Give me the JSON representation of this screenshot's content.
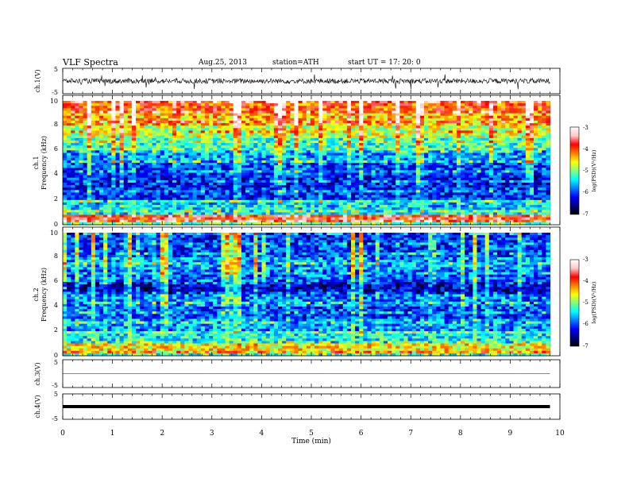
{
  "header": {
    "title": "VLF  Spectra",
    "date": "Aug.25, 2013",
    "station": "station=ATH",
    "start": "start  UT  =    17: 20: 0"
  },
  "colors": {
    "colormap": [
      "#000000",
      "#00007f",
      "#0000ff",
      "#007fff",
      "#00ffff",
      "#7fff7f",
      "#ffff00",
      "#ff7f00",
      "#ff0000",
      "#ffc8c8",
      "#ffffff"
    ],
    "trace": "#000000"
  },
  "chart_data": [
    {
      "type": "line",
      "panel": "ch1-waveform",
      "ylabel": "ch.1(V)",
      "ylim": [
        -5,
        5
      ],
      "yticks": [
        "5",
        "-5"
      ],
      "xlim": [
        0,
        10
      ],
      "description_values": {
        "baseline_v": 0.0,
        "noise_amplitude_v": 2.0,
        "spike_amplitude_v": 5.0
      }
    },
    {
      "type": "heatmap",
      "panel": "ch1-spectrogram",
      "ylabel_top": "ch.1",
      "ylabel": "Frequency  (kHz)",
      "ylim": [
        0,
        10
      ],
      "yticks": [
        "0",
        "2",
        "4",
        "6",
        "8",
        "10"
      ],
      "xlim": [
        0,
        9.8
      ],
      "colorbar": {
        "label": "log(PSD)(V²/Hz)",
        "range": [
          -7,
          -3
        ],
        "ticks": [
          "-3",
          "-4",
          "-5",
          "-6",
          "-7"
        ]
      },
      "bands": [
        {
          "f": [
            0,
            0.3
          ],
          "level": -5.0
        },
        {
          "f": [
            0.3,
            0.7
          ],
          "level": -3.8
        },
        {
          "f": [
            0.7,
            1.3
          ],
          "level": -5.4
        },
        {
          "f": [
            1.3,
            2.0
          ],
          "level": -5.5
        },
        {
          "f": [
            2.0,
            3.0
          ],
          "level": -6.1
        },
        {
          "f": [
            3.0,
            4.0
          ],
          "level": -6.2
        },
        {
          "f": [
            4.0,
            5.0
          ],
          "level": -6.0
        },
        {
          "f": [
            5.0,
            6.0
          ],
          "level": -5.7
        },
        {
          "f": [
            6.0,
            7.0
          ],
          "level": -5.2
        },
        {
          "f": [
            7.0,
            8.0
          ],
          "level": -4.8
        },
        {
          "f": [
            8.0,
            9.0
          ],
          "level": -4.4
        },
        {
          "f": [
            9.0,
            10.0
          ],
          "level": -4.0
        }
      ]
    },
    {
      "type": "heatmap",
      "panel": "ch2-spectrogram",
      "ylabel_top": "ch.2",
      "ylabel": "Frequency  (kHz)",
      "ylim": [
        0,
        10
      ],
      "yticks": [
        "0",
        "2",
        "4",
        "6",
        "8",
        "10"
      ],
      "xlim": [
        0,
        9.8
      ],
      "colorbar": {
        "label": "log(PSD)(V²/Hz)",
        "range": [
          -7,
          -3
        ],
        "ticks": [
          "-3",
          "-4",
          "-5",
          "-6",
          "-7"
        ]
      },
      "bands": [
        {
          "f": [
            0,
            0.3
          ],
          "level": -5.2
        },
        {
          "f": [
            0.3,
            1.0
          ],
          "level": -4.6
        },
        {
          "f": [
            1.0,
            2.0
          ],
          "level": -5.4
        },
        {
          "f": [
            2.0,
            3.0
          ],
          "level": -5.7
        },
        {
          "f": [
            3.0,
            4.0
          ],
          "level": -6.0
        },
        {
          "f": [
            4.0,
            5.0
          ],
          "level": -5.8
        },
        {
          "f": [
            5.0,
            6.0
          ],
          "level": -6.4
        },
        {
          "f": [
            6.0,
            7.0
          ],
          "level": -5.9
        },
        {
          "f": [
            7.0,
            8.0
          ],
          "level": -5.7
        },
        {
          "f": [
            8.0,
            9.0
          ],
          "level": -6.0
        },
        {
          "f": [
            9.0,
            10.0
          ],
          "level": -6.1
        }
      ]
    },
    {
      "type": "line",
      "panel": "ch3-waveform",
      "ylabel": "ch.3(V)",
      "ylim": [
        -5,
        5
      ],
      "yticks": [
        "5",
        "-5"
      ],
      "xlim": [
        0,
        10
      ],
      "description_values": {
        "baseline_v": 0.0,
        "noise_amplitude_v": 0.1
      }
    },
    {
      "type": "line",
      "panel": "ch4-waveform",
      "ylabel": "ch.4(V)",
      "ylim": [
        -5,
        5
      ],
      "yticks": [
        "5",
        "-5"
      ],
      "xlim": [
        0,
        10
      ],
      "description_values": {
        "baseline_v": 0.0,
        "noise_amplitude_v": 0.0
      }
    },
    {
      "type": "axis",
      "panel": "time-axis",
      "xlabel": "Time  (min)",
      "xlim": [
        0,
        10
      ],
      "xticks": [
        "0",
        "1",
        "2",
        "3",
        "4",
        "5",
        "6",
        "7",
        "8",
        "9",
        "10"
      ]
    }
  ]
}
